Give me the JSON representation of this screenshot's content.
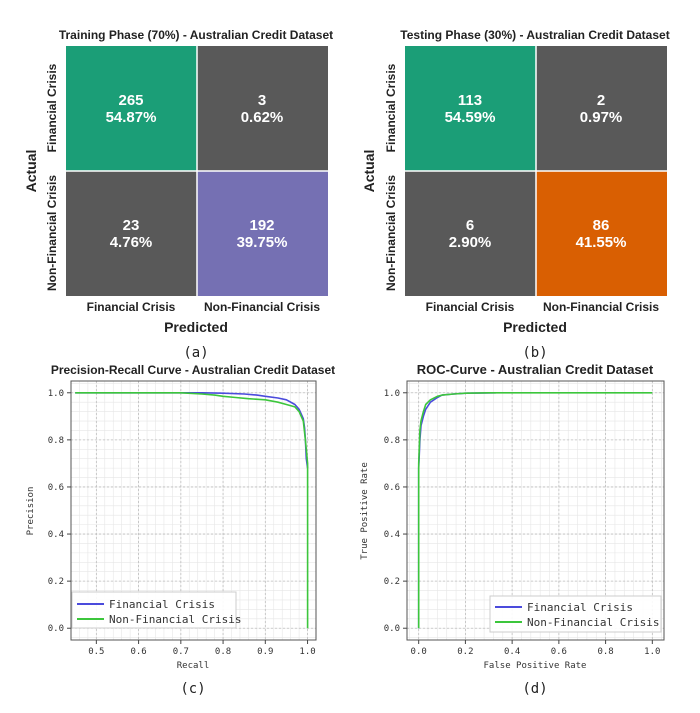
{
  "chart_data": [
    {
      "type": "heatmap",
      "title": "Training Phase (70%) - Australian Credit Dataset",
      "caption": "(a)",
      "xlabel": "Predicted",
      "ylabel": "Actual",
      "x_categories": [
        "Financial Crisis",
        "Non-Financial Crisis"
      ],
      "y_categories": [
        "Financial Crisis",
        "Non-Financial Crisis"
      ],
      "cells": [
        [
          {
            "count": "265",
            "pct": "54.87%",
            "color": "#1b9e77"
          },
          {
            "count": "3",
            "pct": "0.62%",
            "color": "#595959"
          }
        ],
        [
          {
            "count": "23",
            "pct": "4.76%",
            "color": "#595959"
          },
          {
            "count": "192",
            "pct": "39.75%",
            "color": "#7570b3"
          }
        ]
      ]
    },
    {
      "type": "heatmap",
      "title": "Testing Phase (30%) - Australian Credit Dataset",
      "caption": "(b)",
      "xlabel": "Predicted",
      "ylabel": "Actual",
      "x_categories": [
        "Financial Crisis",
        "Non-Financial Crisis"
      ],
      "y_categories": [
        "Financial Crisis",
        "Non-Financial Crisis"
      ],
      "cells": [
        [
          {
            "count": "113",
            "pct": "54.59%",
            "color": "#1b9e77"
          },
          {
            "count": "2",
            "pct": "0.97%",
            "color": "#595959"
          }
        ],
        [
          {
            "count": "6",
            "pct": "2.90%",
            "color": "#595959"
          },
          {
            "count": "86",
            "pct": "41.55%",
            "color": "#d95f02"
          }
        ]
      ]
    },
    {
      "type": "line",
      "title": "Precision-Recall Curve - Australian Credit Dataset",
      "caption": "(c)",
      "xlabel": "Recall",
      "ylabel": "Precision",
      "xlim": [
        0.44,
        1.02
      ],
      "ylim": [
        -0.05,
        1.05
      ],
      "xticks": [
        0.5,
        0.6,
        0.7,
        0.8,
        0.9,
        1.0
      ],
      "xtick_labels": [
        "0.5",
        "0.6",
        "0.7",
        "0.8",
        "0.9",
        "1.0"
      ],
      "yticks": [
        0.0,
        0.2,
        0.4,
        0.6,
        0.8,
        1.0
      ],
      "ytick_labels": [
        "0.0",
        "0.2",
        "0.4",
        "0.6",
        "0.8",
        "1.0"
      ],
      "legend": "lower-left",
      "series": [
        {
          "name": "Financial Crisis",
          "color": "#4b4bdc",
          "x": [
            0.45,
            0.6,
            0.7,
            0.75,
            0.8,
            0.85,
            0.88,
            0.9,
            0.93,
            0.95,
            0.97,
            0.98,
            0.99,
            0.993,
            0.995,
            0.997,
            1.0
          ],
          "y": [
            1.0,
            1.0,
            1.0,
            1.0,
            0.998,
            0.995,
            0.99,
            0.985,
            0.978,
            0.97,
            0.95,
            0.93,
            0.89,
            0.85,
            0.8,
            0.72,
            0.68
          ]
        },
        {
          "name": "Non-Financial Crisis",
          "color": "#3cc63c",
          "x": [
            0.45,
            0.6,
            0.7,
            0.75,
            0.78,
            0.8,
            0.83,
            0.86,
            0.9,
            0.93,
            0.95,
            0.97,
            0.98,
            0.99,
            0.995,
            1.0,
            1.0
          ],
          "y": [
            1.0,
            1.0,
            1.0,
            0.995,
            0.99,
            0.985,
            0.98,
            0.975,
            0.97,
            0.96,
            0.95,
            0.94,
            0.92,
            0.88,
            0.8,
            0.7,
            0.0
          ]
        }
      ]
    },
    {
      "type": "line",
      "title": "ROC-Curve - Australian Credit Dataset",
      "caption": "(d)",
      "xlabel": "False Positive Rate",
      "ylabel": "True Positive Rate",
      "xlim": [
        -0.05,
        1.05
      ],
      "ylim": [
        -0.05,
        1.05
      ],
      "xticks": [
        0.0,
        0.2,
        0.4,
        0.6,
        0.8,
        1.0
      ],
      "xtick_labels": [
        "0.0",
        "0.2",
        "0.4",
        "0.6",
        "0.8",
        "1.0"
      ],
      "yticks": [
        0.0,
        0.2,
        0.4,
        0.6,
        0.8,
        1.0
      ],
      "ytick_labels": [
        "0.0",
        "0.2",
        "0.4",
        "0.6",
        "0.8",
        "1.0"
      ],
      "legend": "lower-right",
      "series": [
        {
          "name": "Financial Crisis",
          "color": "#4b4bdc",
          "x": [
            0.0,
            0.0,
            0.005,
            0.01,
            0.02,
            0.03,
            0.05,
            0.08,
            0.1,
            0.15,
            0.2,
            0.33
          ],
          "y": [
            0.0,
            0.68,
            0.8,
            0.86,
            0.9,
            0.93,
            0.96,
            0.98,
            0.99,
            0.995,
            0.998,
            1.0
          ]
        },
        {
          "name": "Non-Financial Crisis",
          "color": "#3cc63c",
          "x": [
            0.0,
            0.0,
            0.005,
            0.01,
            0.02,
            0.03,
            0.05,
            0.08,
            0.1,
            0.15,
            0.2,
            0.3,
            1.0
          ],
          "y": [
            0.0,
            0.7,
            0.84,
            0.88,
            0.92,
            0.95,
            0.97,
            0.985,
            0.99,
            0.995,
            0.998,
            1.0,
            1.0
          ]
        }
      ]
    }
  ]
}
